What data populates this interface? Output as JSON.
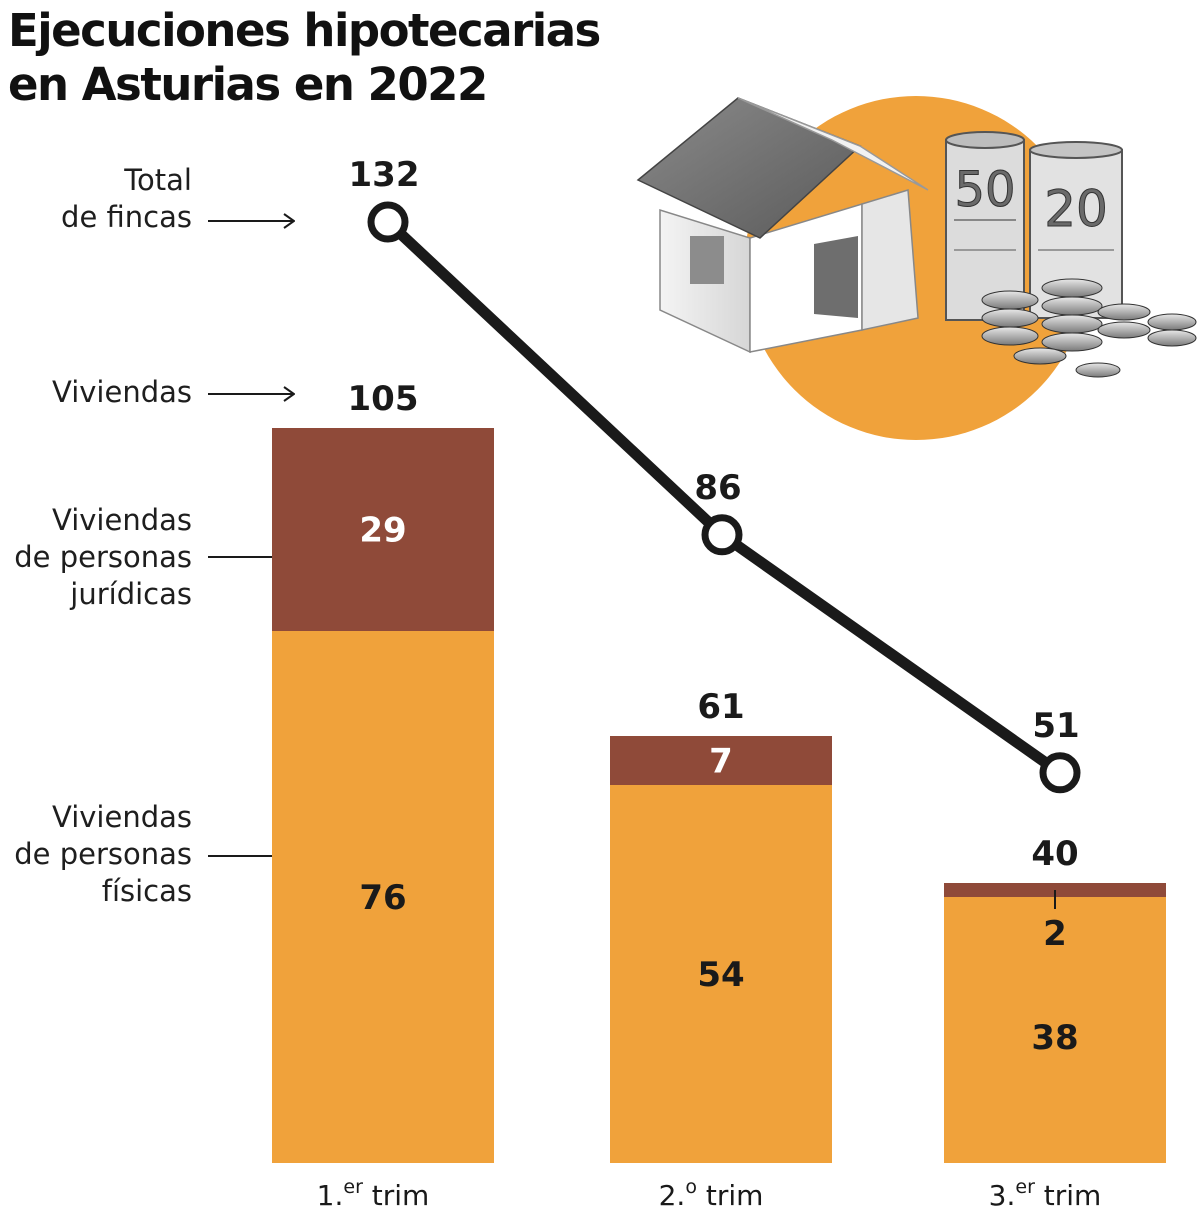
{
  "title_lines": [
    "Ejecuciones hipotecarias",
    "en Asturias en 2022"
  ],
  "labels": {
    "total_fincas": [
      "Total",
      "de fincas"
    ],
    "viviendas": [
      "Viviendas"
    ],
    "juridicas": [
      "Viviendas",
      "de personas",
      "jurídicas"
    ],
    "fisicas": [
      "Viviendas",
      "de personas",
      "físicas"
    ]
  },
  "colors": {
    "fisicas": "#f0a23b",
    "juridicas": "#8f4a39",
    "line": "#1a1a1a",
    "circle": "#f0a23b"
  },
  "chart_data": {
    "type": "bar",
    "categories": [
      {
        "main": "1.",
        "sup": "er",
        "tail": " trim"
      },
      {
        "main": "2.",
        "sup": "o",
        "tail": " trim"
      },
      {
        "main": "3.",
        "sup": "er",
        "tail": " trim"
      }
    ],
    "stacked": true,
    "series": [
      {
        "name": "Viviendas de personas físicas",
        "values": [
          76,
          54,
          38
        ]
      },
      {
        "name": "Viviendas de personas jurídicas",
        "values": [
          29,
          7,
          2
        ]
      }
    ],
    "bar_totals_viviendas": [
      105,
      61,
      40
    ],
    "line_series": {
      "name": "Total de fincas",
      "values": [
        132,
        86,
        51
      ]
    }
  },
  "illustration": {
    "icon": "house-and-money-icon",
    "banknotes": [
      "50",
      "20"
    ]
  }
}
